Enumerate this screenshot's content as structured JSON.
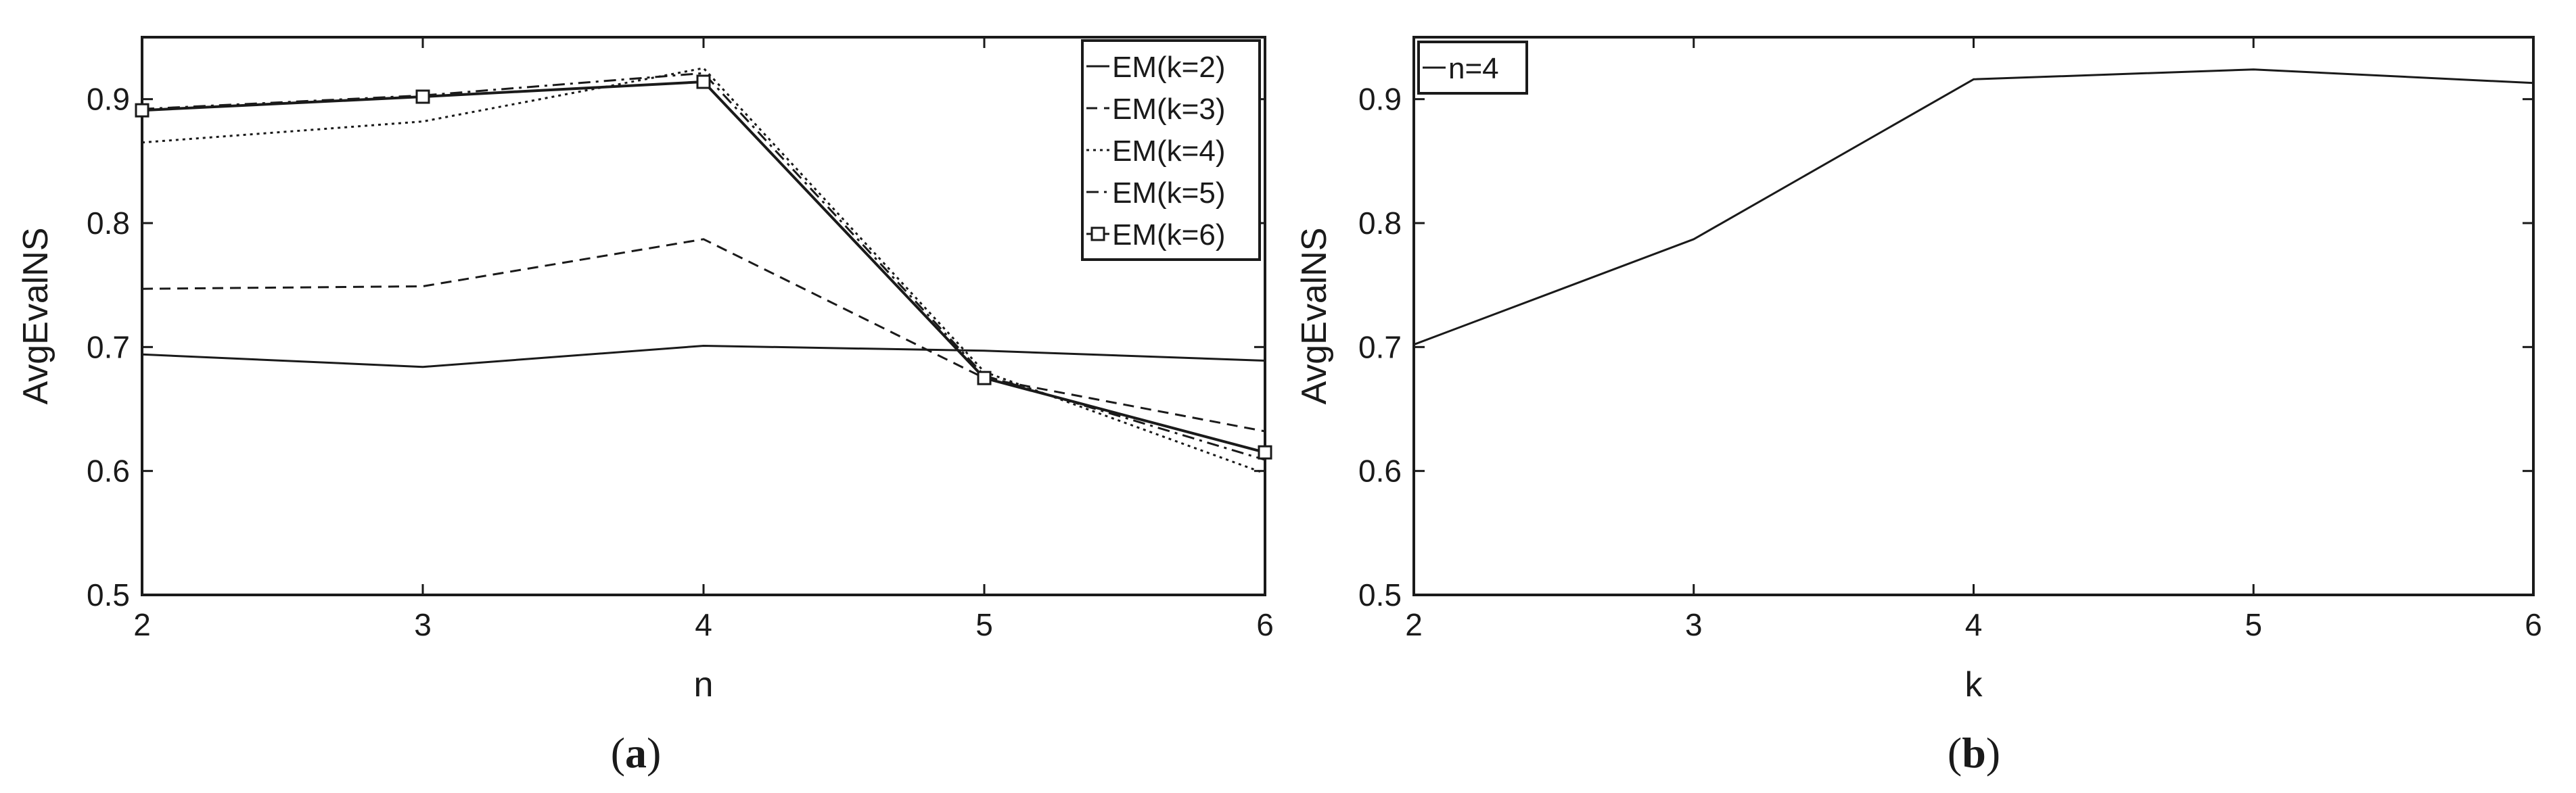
{
  "chart_data": [
    {
      "type": "line",
      "panel_label": "a",
      "xlabel": "n",
      "ylabel": "AvgEvalNS",
      "xlim": [
        2,
        6
      ],
      "ylim": [
        0.5,
        0.95
      ],
      "xticks": [
        2,
        3,
        4,
        5,
        6
      ],
      "yticks": [
        0.5,
        0.6,
        0.7,
        0.8,
        0.9
      ],
      "grid": false,
      "legend": "top-right",
      "x": [
        2,
        3,
        4,
        5,
        6
      ],
      "series": [
        {
          "name": "EM(k=2)",
          "style": "solid",
          "values": [
            0.694,
            0.684,
            0.701,
            0.697,
            0.689
          ]
        },
        {
          "name": "EM(k=3)",
          "style": "dashed",
          "values": [
            0.747,
            0.749,
            0.787,
            0.675,
            0.632
          ]
        },
        {
          "name": "EM(k=4)",
          "style": "dotted",
          "values": [
            0.865,
            0.882,
            0.925,
            0.68,
            0.598
          ]
        },
        {
          "name": "EM(k=5)",
          "style": "dashdot",
          "values": [
            0.892,
            0.903,
            0.921,
            0.677,
            0.609
          ]
        },
        {
          "name": "EM(k=6)",
          "style": "solid-square",
          "values": [
            0.891,
            0.902,
            0.914,
            0.675,
            0.615
          ]
        }
      ]
    },
    {
      "type": "line",
      "panel_label": "b",
      "xlabel": "k",
      "ylabel": "AvgEvalNS",
      "xlim": [
        2,
        6
      ],
      "ylim": [
        0.5,
        0.95
      ],
      "xticks": [
        2,
        3,
        4,
        5,
        6
      ],
      "yticks": [
        0.5,
        0.6,
        0.7,
        0.8,
        0.9
      ],
      "grid": false,
      "legend": "top-left",
      "x": [
        2,
        3,
        4,
        5,
        6
      ],
      "series": [
        {
          "name": "n=4",
          "style": "solid",
          "values": [
            0.702,
            0.787,
            0.916,
            0.924,
            0.913
          ]
        }
      ]
    }
  ]
}
